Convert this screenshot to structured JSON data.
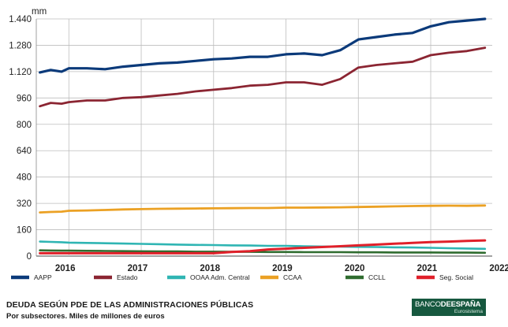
{
  "chart_data": {
    "type": "line",
    "unit_label": "mm",
    "y_ticks": [
      0,
      160,
      320,
      480,
      640,
      800,
      960,
      1120,
      1280,
      1440
    ],
    "y_tick_labels": [
      "0",
      "160",
      "320",
      "480",
      "640",
      "800",
      "960",
      "1.120",
      "1.280",
      "1.440"
    ],
    "ylim": [
      0,
      1440
    ],
    "xlim": [
      2015.55,
      2021.85
    ],
    "x_gridlines": [
      2016,
      2017,
      2018,
      2019,
      2020,
      2021,
      2022
    ],
    "year_labels": [
      {
        "label": "2016",
        "at": 2015.95
      },
      {
        "label": "2017",
        "at": 2016.95
      },
      {
        "label": "2018",
        "at": 2017.95
      },
      {
        "label": "2019",
        "at": 2018.95
      },
      {
        "label": "2020",
        "at": 2019.95
      },
      {
        "label": "2021",
        "at": 2020.95
      },
      {
        "label": "2022",
        "at": 2021.95
      }
    ],
    "x": [
      2015.6,
      2015.75,
      2015.9,
      2016.0,
      2016.25,
      2016.5,
      2016.75,
      2017.0,
      2017.25,
      2017.5,
      2017.75,
      2018.0,
      2018.25,
      2018.5,
      2018.75,
      2019.0,
      2019.25,
      2019.5,
      2019.75,
      2020.0,
      2020.25,
      2020.5,
      2020.75,
      2021.0,
      2021.25,
      2021.5,
      2021.75
    ],
    "series": [
      {
        "name": "AAPP",
        "color": "#0b3a7a",
        "width": 3.2,
        "values": [
          1115,
          1130,
          1120,
          1140,
          1140,
          1135,
          1150,
          1160,
          1170,
          1175,
          1185,
          1195,
          1200,
          1210,
          1210,
          1225,
          1230,
          1220,
          1250,
          1315,
          1330,
          1345,
          1355,
          1395,
          1420,
          1430,
          1440
        ]
      },
      {
        "name": "Estado",
        "color": "#8b2532",
        "width": 2.8,
        "values": [
          910,
          930,
          925,
          935,
          945,
          945,
          960,
          965,
          975,
          985,
          1000,
          1010,
          1020,
          1035,
          1040,
          1055,
          1055,
          1040,
          1075,
          1145,
          1160,
          1170,
          1180,
          1220,
          1235,
          1245,
          1265
        ]
      },
      {
        "name": "OOAA Adm. Central",
        "color": "#2fb5b3",
        "width": 2.6,
        "values": [
          88,
          86,
          84,
          82,
          80,
          78,
          76,
          74,
          72,
          70,
          68,
          67,
          65,
          64,
          62,
          62,
          60,
          58,
          58,
          56,
          55,
          53,
          52,
          50,
          48,
          46,
          44
        ]
      },
      {
        "name": "CCAA",
        "color": "#eba124",
        "width": 2.8,
        "values": [
          265,
          268,
          270,
          275,
          277,
          280,
          283,
          285,
          287,
          288,
          289,
          290,
          291,
          292,
          292,
          294,
          294,
          295,
          296,
          298,
          300,
          302,
          304,
          305,
          306,
          305,
          307
        ]
      },
      {
        "name": "CCLL",
        "color": "#2f6c2f",
        "width": 2.6,
        "values": [
          35,
          34,
          33,
          33,
          32,
          31,
          30,
          29,
          28,
          28,
          27,
          27,
          26,
          26,
          25,
          25,
          24,
          24,
          24,
          23,
          23,
          22,
          22,
          22,
          21,
          21,
          20
        ]
      },
      {
        "name": "Seg. Social",
        "color": "#e0202a",
        "width": 3.0,
        "values": [
          17,
          17,
          17,
          17,
          17,
          17,
          17,
          17,
          17,
          17,
          17,
          17,
          25,
          30,
          40,
          45,
          50,
          55,
          60,
          65,
          70,
          75,
          80,
          85,
          88,
          92,
          95
        ]
      }
    ],
    "legend": {
      "position": "bottom"
    }
  },
  "footer": {
    "title": "DEUDA SEGÚN PDE DE LAS ADMINISTRACIONES PÚBLICAS",
    "subtitle": "Por subsectores. Miles de millones de euros"
  },
  "brand": {
    "name_part1": "BANCO",
    "name_part2": "DE",
    "name_part3": "ESPAÑA",
    "sub": "Eurosistema",
    "color": "#16583f"
  }
}
